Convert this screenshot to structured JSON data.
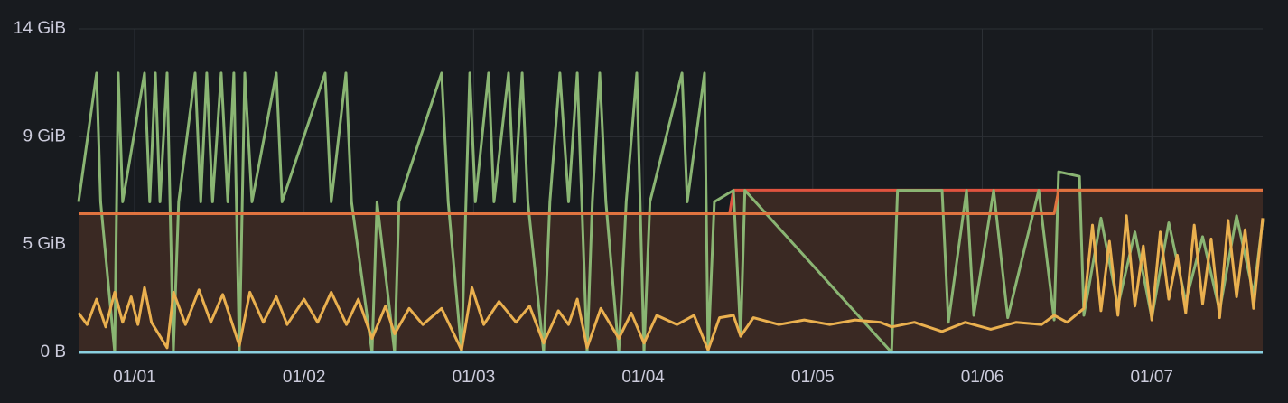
{
  "chart_data": {
    "type": "line",
    "xlim": [
      0.67,
      7.654
    ],
    "ylim": [
      0,
      13.97
    ],
    "xticks": [
      {
        "value": 1,
        "label": "01/01"
      },
      {
        "value": 2,
        "label": "01/02"
      },
      {
        "value": 3,
        "label": "01/03"
      },
      {
        "value": 4,
        "label": "01/04"
      },
      {
        "value": 5,
        "label": "01/05"
      },
      {
        "value": 6,
        "label": "01/06"
      },
      {
        "value": 7,
        "label": "01/07"
      }
    ],
    "yticks": [
      {
        "value": 0,
        "label": "0 B"
      },
      {
        "value": 4.66,
        "label": "5 GiB"
      },
      {
        "value": 9.31,
        "label": "9 GiB"
      },
      {
        "value": 13.97,
        "label": "14 GiB"
      }
    ],
    "grid": true,
    "series": [
      {
        "color": "#e0533f",
        "fill": true,
        "fill_color": "#3a2923",
        "x": [
          0.67,
          4.51,
          4.532,
          7.654
        ],
        "values": [
          5.99,
          5.99,
          7.01,
          7.01
        ]
      },
      {
        "color": "#8ab573",
        "x": [
          0.67,
          0.776,
          0.8,
          0.883,
          0.904,
          0.93,
          1.059,
          1.09,
          1.123,
          1.15,
          1.192,
          1.229,
          1.26,
          1.357,
          1.39,
          1.426,
          1.46,
          1.511,
          1.55,
          1.586,
          1.618,
          1.65,
          1.693,
          1.836,
          1.87,
          2.124,
          2.16,
          2.247,
          2.28,
          2.401,
          2.43,
          2.534,
          2.56,
          2.811,
          2.85,
          2.929,
          2.977,
          3.01,
          3.088,
          3.12,
          3.206,
          3.24,
          3.286,
          3.32,
          3.413,
          3.45,
          3.509,
          3.56,
          3.611,
          3.669,
          3.7,
          3.744,
          3.78,
          3.856,
          3.9,
          3.962,
          4.005,
          4.04,
          4.229,
          4.26,
          4.362,
          4.383,
          4.42,
          4.532,
          4.575,
          4.6,
          5.465,
          5.5,
          5.763,
          5.8,
          5.907,
          5.95,
          6.067,
          6.15,
          6.333,
          6.424,
          6.45,
          6.573,
          6.599,
          6.7,
          6.8,
          6.9,
          7.0,
          7.1,
          7.2,
          7.3,
          7.4,
          7.5,
          7.6,
          7.654
        ],
        "values": [
          6.5,
          12.06,
          6.5,
          0,
          12.06,
          6.5,
          12.06,
          6.5,
          12.06,
          6.5,
          12.06,
          0,
          6.5,
          12.06,
          6.5,
          12.06,
          6.5,
          12.06,
          6.5,
          12.06,
          0,
          12.06,
          6.5,
          12.06,
          6.5,
          12.06,
          6.5,
          12.06,
          6.5,
          0,
          6.5,
          0,
          6.5,
          12.06,
          6.5,
          0,
          12.06,
          6.5,
          12.06,
          6.5,
          12.06,
          6.5,
          12.06,
          6.5,
          0,
          6.5,
          12.06,
          6.5,
          12.06,
          0,
          6.5,
          12.06,
          6.5,
          0,
          6.5,
          12.06,
          0,
          6.5,
          12.06,
          6.5,
          12.06,
          0,
          6.5,
          7.0,
          0.7,
          7.0,
          0,
          7.0,
          7.0,
          1.3,
          7.0,
          1.6,
          7.0,
          1.5,
          7.0,
          1.4,
          7.8,
          7.6,
          1.6,
          5.8,
          2.0,
          5.2,
          1.5,
          5.6,
          2.2,
          5.0,
          1.8,
          5.9,
          2.5,
          5.7
        ]
      },
      {
        "color": "#eab04f",
        "x": [
          0.67,
          0.72,
          0.776,
          0.83,
          0.883,
          0.93,
          0.98,
          1.02,
          1.059,
          1.1,
          1.192,
          1.23,
          1.3,
          1.38,
          1.45,
          1.52,
          1.618,
          1.68,
          1.76,
          1.836,
          1.9,
          2.0,
          2.08,
          2.16,
          2.25,
          2.32,
          2.401,
          2.48,
          2.534,
          2.62,
          2.7,
          2.811,
          2.929,
          2.99,
          3.06,
          3.15,
          3.25,
          3.33,
          3.413,
          3.5,
          3.56,
          3.611,
          3.669,
          3.75,
          3.856,
          3.93,
          4.005,
          4.08,
          4.2,
          4.3,
          4.383,
          4.45,
          4.532,
          4.575,
          4.65,
          4.8,
          4.95,
          5.1,
          5.25,
          5.4,
          5.465,
          5.6,
          5.763,
          5.9,
          6.05,
          6.2,
          6.35,
          6.424,
          6.5,
          6.599,
          6.65,
          6.7,
          6.75,
          6.8,
          6.85,
          6.9,
          6.95,
          7.0,
          7.05,
          7.1,
          7.15,
          7.2,
          7.25,
          7.3,
          7.35,
          7.4,
          7.45,
          7.5,
          7.55,
          7.6,
          7.654
        ],
        "values": [
          1.7,
          1.2,
          2.3,
          1.1,
          2.6,
          1.3,
          2.4,
          1.2,
          2.8,
          1.3,
          0.2,
          2.6,
          1.2,
          2.7,
          1.3,
          2.5,
          0.3,
          2.6,
          1.3,
          2.4,
          1.2,
          2.3,
          1.3,
          2.6,
          1.2,
          2.3,
          0.6,
          2.0,
          0.8,
          1.9,
          1.2,
          1.9,
          0.1,
          2.8,
          1.2,
          2.2,
          1.3,
          2.0,
          0.4,
          1.8,
          1.2,
          2.3,
          0.2,
          1.9,
          0.6,
          1.7,
          0.4,
          1.6,
          1.2,
          1.6,
          0.1,
          1.5,
          1.6,
          0.7,
          1.5,
          1.2,
          1.4,
          1.2,
          1.4,
          1.3,
          1.1,
          1.3,
          0.9,
          1.3,
          1.0,
          1.3,
          1.2,
          1.6,
          1.3,
          1.9,
          5.5,
          1.8,
          4.8,
          1.6,
          5.9,
          2.0,
          4.6,
          1.4,
          5.2,
          2.3,
          4.2,
          1.7,
          5.5,
          2.1,
          4.9,
          1.5,
          5.7,
          2.4,
          5.3,
          1.9,
          5.8
        ]
      },
      {
        "color": "#e0733f",
        "x": [
          0.67,
          6.424,
          6.45,
          7.654
        ],
        "values": [
          5.99,
          5.99,
          7.01,
          7.01
        ]
      },
      {
        "color": "#8ad0e0",
        "x": [
          0.67,
          7.654
        ],
        "values": [
          0,
          0
        ]
      }
    ]
  }
}
